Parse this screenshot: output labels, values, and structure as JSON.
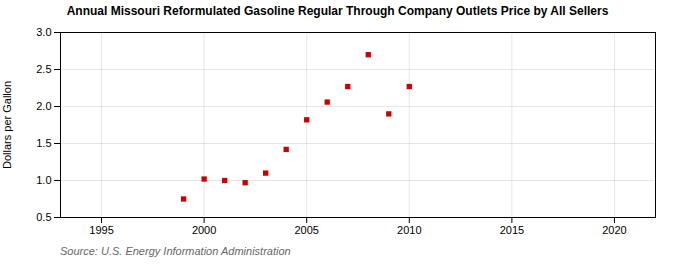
{
  "chart_data": {
    "type": "scatter",
    "title": "Annual Missouri Reformulated Gasoline Regular Through Company Outlets Price by All Sellers",
    "ylabel": "Dollars per Gallon",
    "annotations": [
      "Source: U.S. Energy Information Administration"
    ],
    "x": [
      1999,
      2000,
      2001,
      2002,
      2003,
      2004,
      2005,
      2006,
      2007,
      2008,
      2009,
      2010
    ],
    "values": [
      0.75,
      1.02,
      1.0,
      0.97,
      1.1,
      1.42,
      1.82,
      2.06,
      2.27,
      2.7,
      1.9,
      2.27
    ],
    "color": "#cc0000",
    "marker": "square",
    "xlim": [
      1993,
      2022
    ],
    "xticks": [
      1995,
      2000,
      2005,
      2010,
      2015,
      2020
    ],
    "ylim": [
      0.5,
      3.0
    ],
    "yticks": [
      0.5,
      {
        "value": 1.0,
        "label": "1.0"
      },
      1.5,
      {
        "value": 2.0,
        "label": "2.0"
      },
      2.5,
      {
        "value": 3.0,
        "label": "3.0"
      }
    ],
    "grid": true
  }
}
